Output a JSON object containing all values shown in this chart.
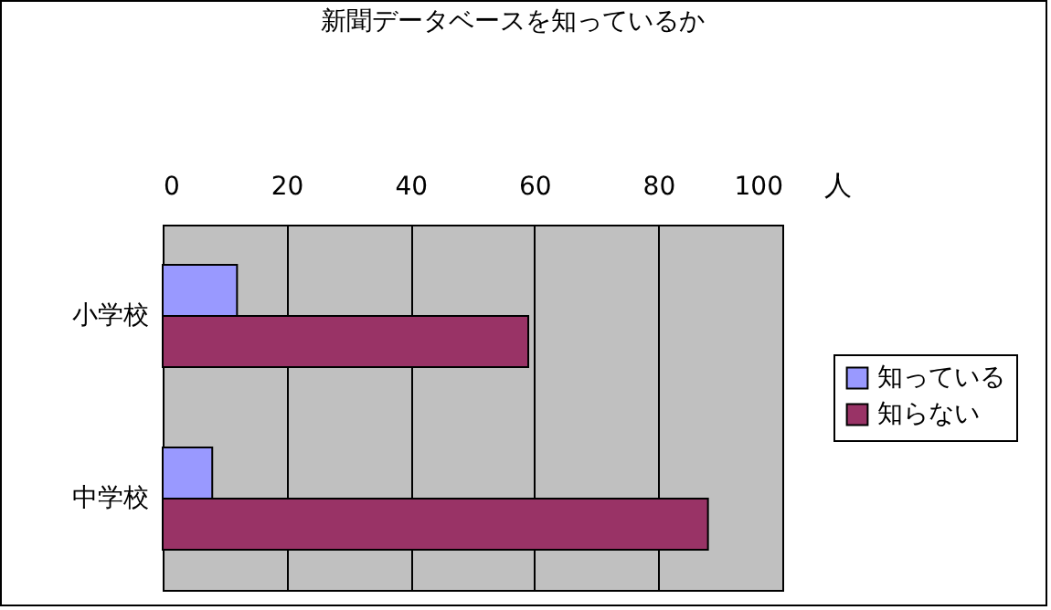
{
  "chart_data": {
    "type": "bar",
    "orientation": "horizontal",
    "title": "新聞データベースを知っているか",
    "xlabel": "人",
    "categories": [
      "小学校",
      "中学校"
    ],
    "series": [
      {
        "name": "知っている",
        "color": "#9999ff",
        "values": [
          12,
          8
        ]
      },
      {
        "name": "知らない",
        "color": "#993366",
        "values": [
          59,
          88
        ]
      }
    ],
    "xlim": [
      0,
      100
    ],
    "xticks": [
      0,
      20,
      40,
      60,
      80,
      100
    ],
    "grid": "x",
    "legend": "right"
  }
}
